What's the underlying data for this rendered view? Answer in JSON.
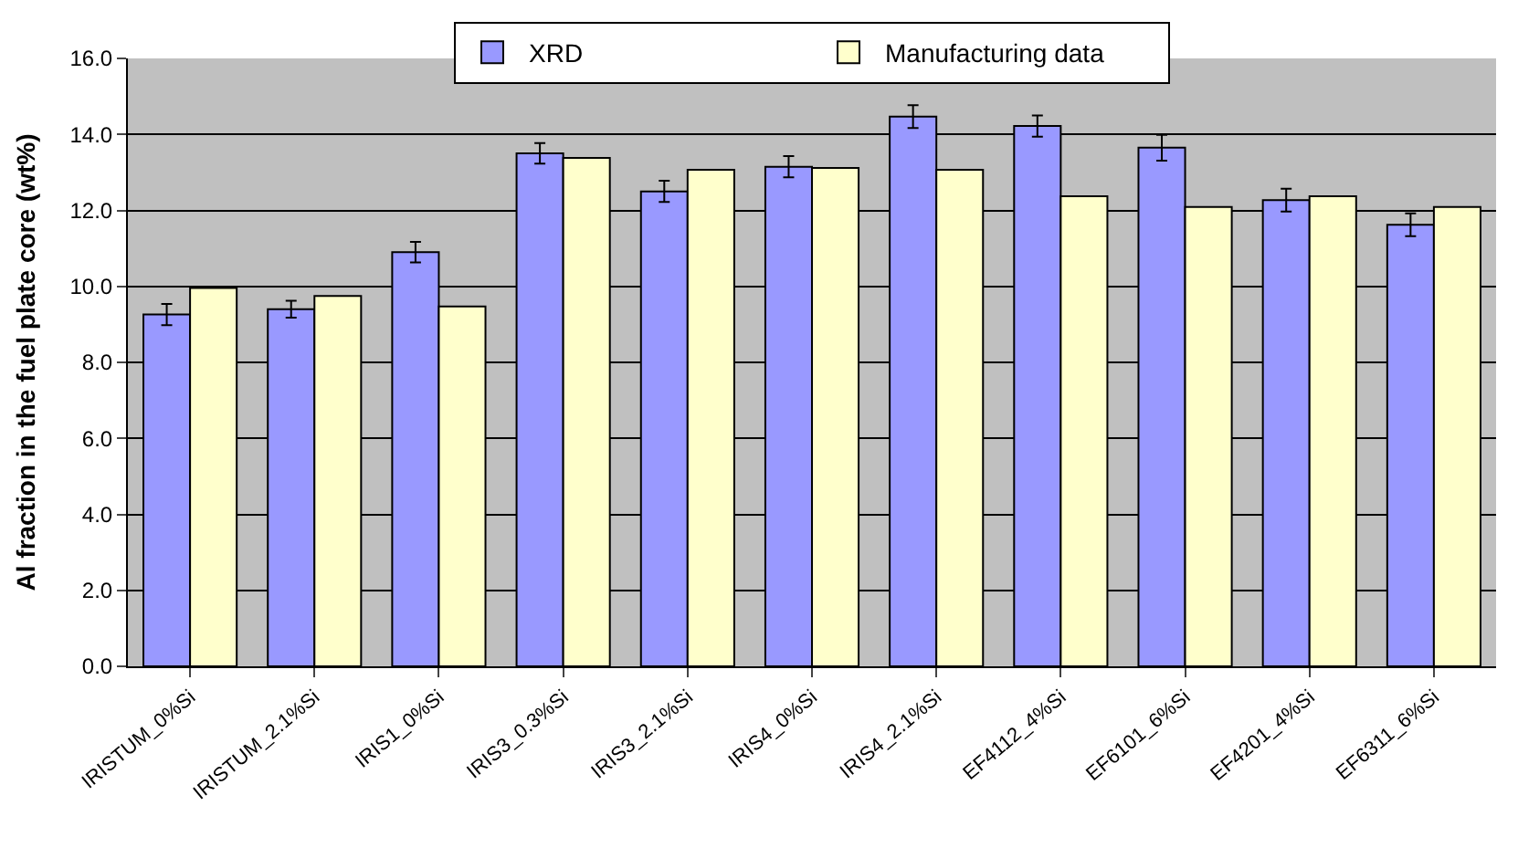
{
  "chart_data": {
    "type": "bar",
    "ylabel": "Al fraction in the fuel plate core (wt%)",
    "categories": [
      "IRISTUM_0%Si",
      "IRISTUM_2.1%Si",
      "IRIS1_0%Si",
      "IRIS3_0.3%Si",
      "IRIS3_2.1%Si",
      "IRIS4_0%Si",
      "IRIS4_2.1%Si",
      "EF4112_4%Si",
      "EF6101_6%Si",
      "EF4201_4%Si",
      "EF6311_6%Si"
    ],
    "series": [
      {
        "name": "XRD",
        "color": "#9999ff",
        "values": [
          9.26,
          9.4,
          10.9,
          13.5,
          12.5,
          13.15,
          14.47,
          14.22,
          13.65,
          12.27,
          11.62
        ],
        "errors": [
          0.28,
          0.22,
          0.27,
          0.27,
          0.28,
          0.28,
          0.3,
          0.28,
          0.34,
          0.3,
          0.3
        ]
      },
      {
        "name": "Manufacturing data",
        "color": "#ffffcc",
        "values": [
          9.96,
          9.75,
          9.47,
          13.38,
          13.07,
          13.12,
          13.07,
          12.37,
          12.09,
          12.37,
          12.09
        ]
      }
    ],
    "ylim": [
      0,
      16
    ],
    "yticks": [
      {
        "value": 0,
        "label": "0.0"
      },
      {
        "value": 2,
        "label": "2.0"
      },
      {
        "value": 4,
        "label": "4.0"
      },
      {
        "value": 6,
        "label": "6.0"
      },
      {
        "value": 8,
        "label": "8.0"
      },
      {
        "value": 10,
        "label": "10.0"
      },
      {
        "value": 12,
        "label": "12.0"
      },
      {
        "value": 14,
        "label": "14.0"
      },
      {
        "value": 16,
        "label": "16.0"
      }
    ],
    "grid": "y",
    "legend": "top"
  }
}
